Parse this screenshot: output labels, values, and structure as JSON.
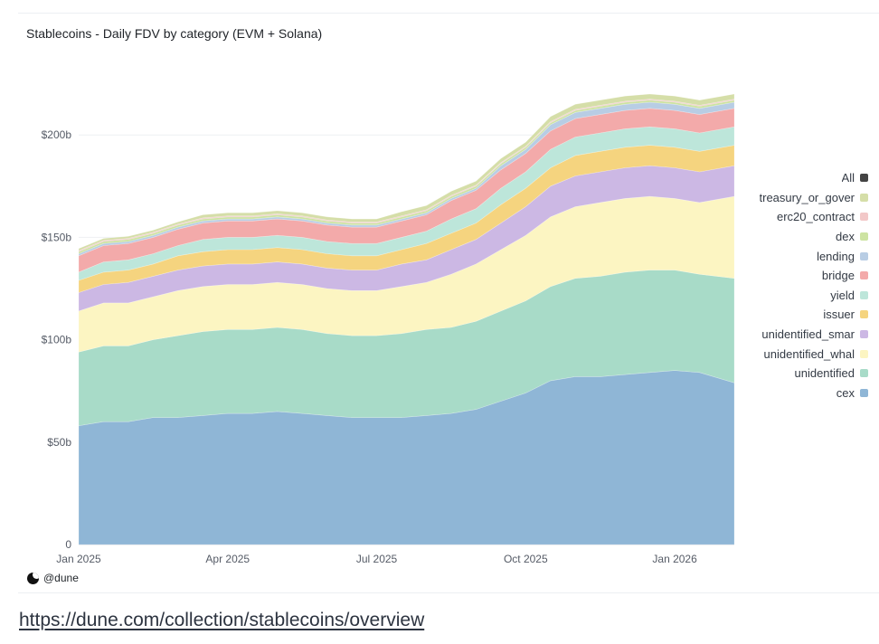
{
  "link": {
    "text": "https://dune.com/collection/stablecoins/overview"
  },
  "brand": {
    "text": "@dune"
  },
  "chart_data": {
    "type": "area",
    "stacked": true,
    "title": "Stablecoins - Daily FDV by category (EVM + Solana)",
    "xlabel": "",
    "ylabel": "",
    "ylim": [
      0,
      235
    ],
    "y_unit": "billion USD",
    "y_ticks": [
      {
        "value": 0,
        "label": "0"
      },
      {
        "value": 50,
        "label": "$50b"
      },
      {
        "value": 100,
        "label": "$100b"
      },
      {
        "value": 150,
        "label": "$150b"
      },
      {
        "value": 200,
        "label": "$200b"
      }
    ],
    "x_ticks": [
      {
        "value": 0,
        "label": "Jan 2025"
      },
      {
        "value": 3,
        "label": "Apr 2025"
      },
      {
        "value": 6,
        "label": "Jul 2025"
      },
      {
        "value": 9,
        "label": "Oct 2025"
      },
      {
        "value": 12,
        "label": "Jan 2026"
      }
    ],
    "x_unit": "months since Jan 2025",
    "x": [
      0,
      0.5,
      1,
      1.5,
      2,
      2.5,
      3,
      3.5,
      4,
      4.5,
      5,
      5.5,
      6,
      6.5,
      7,
      7.5,
      8,
      8.5,
      9,
      9.5,
      10,
      10.5,
      11,
      11.5,
      12,
      12.5,
      13.2
    ],
    "legend": {
      "position": "right",
      "all_label": "All",
      "all_color": "#444444"
    },
    "series": [
      {
        "name": "cex",
        "color": "#8fb6d6",
        "values": [
          58,
          60,
          60,
          62,
          62,
          63,
          64,
          64,
          65,
          64,
          63,
          62,
          62,
          62,
          63,
          64,
          66,
          70,
          74,
          80,
          82,
          82,
          83,
          84,
          85,
          84,
          79
        ]
      },
      {
        "name": "unidentified",
        "color": "#a8dbc8",
        "values": [
          36,
          37,
          37,
          38,
          40,
          41,
          41,
          41,
          41,
          41,
          40,
          40,
          40,
          41,
          42,
          42,
          43,
          44,
          45,
          46,
          48,
          49,
          50,
          50,
          49,
          48,
          51
        ]
      },
      {
        "name": "unidentified_whal",
        "color": "#fcf5c2",
        "values": [
          20,
          21,
          21,
          21,
          22,
          22,
          22,
          22,
          22,
          22,
          22,
          22,
          22,
          23,
          23,
          26,
          28,
          30,
          32,
          34,
          35,
          36,
          36,
          36,
          35,
          35,
          40
        ]
      },
      {
        "name": "unidentified_smar",
        "color": "#ccb8e4",
        "values": [
          9,
          9,
          10,
          10,
          10,
          10,
          10,
          10,
          10,
          10,
          10,
          10,
          10,
          11,
          11,
          12,
          12,
          13,
          14,
          15,
          15,
          15,
          15,
          15,
          15,
          15,
          15
        ]
      },
      {
        "name": "issuer",
        "color": "#f5d47f",
        "values": [
          6,
          6,
          6,
          6,
          7,
          7,
          7,
          7,
          7,
          7,
          7,
          7,
          7,
          7,
          8,
          8,
          8,
          9,
          9,
          9,
          10,
          10,
          10,
          10,
          10,
          10,
          10
        ]
      },
      {
        "name": "yield",
        "color": "#bde6da",
        "values": [
          4,
          5,
          5,
          5,
          5,
          6,
          6,
          6,
          6,
          6,
          6,
          6,
          6,
          6,
          6,
          7,
          7,
          8,
          8,
          9,
          9,
          9,
          9,
          9,
          9,
          9,
          9
        ]
      },
      {
        "name": "bridge",
        "color": "#f3aaaa",
        "values": [
          8,
          8,
          8,
          8,
          8,
          8,
          8,
          8,
          8,
          8,
          8,
          8,
          8,
          8,
          8,
          9,
          9,
          9,
          9,
          9,
          9,
          9,
          9,
          9,
          9,
          9,
          9
        ]
      },
      {
        "name": "lending",
        "color": "#b8cde4",
        "values": [
          1,
          1,
          1,
          1,
          1,
          1,
          1,
          1,
          1,
          1,
          1,
          1,
          1,
          1,
          1,
          1,
          1,
          2,
          2,
          3,
          3,
          3,
          3,
          3,
          3,
          3,
          3
        ]
      },
      {
        "name": "dex",
        "color": "#cde3a2",
        "values": [
          1,
          1,
          1,
          1,
          1,
          1,
          1,
          1,
          1,
          1,
          1,
          1,
          1,
          1,
          1,
          1,
          1,
          1,
          1,
          1,
          1,
          1,
          1,
          1,
          1,
          1,
          1
        ]
      },
      {
        "name": "erc20_contract",
        "color": "#f2c8c8",
        "values": [
          0.5,
          0.5,
          0.5,
          0.5,
          0.5,
          0.5,
          0.5,
          0.5,
          0.5,
          0.5,
          0.5,
          0.5,
          0.5,
          0.5,
          0.5,
          0.5,
          0.5,
          0.5,
          0.5,
          0.5,
          0.5,
          0.5,
          0.5,
          0.5,
          0.5,
          0.5,
          0.5
        ]
      },
      {
        "name": "treasury_or_gover",
        "color": "#d5dea8",
        "values": [
          1,
          1,
          1,
          1,
          1,
          1.5,
          1.5,
          1.5,
          1.5,
          1.5,
          1.5,
          1.5,
          1.5,
          2,
          2,
          2,
          2,
          2,
          2,
          2.5,
          2.5,
          2.5,
          2.5,
          2.5,
          2.5,
          2.5,
          2.5
        ]
      }
    ]
  }
}
